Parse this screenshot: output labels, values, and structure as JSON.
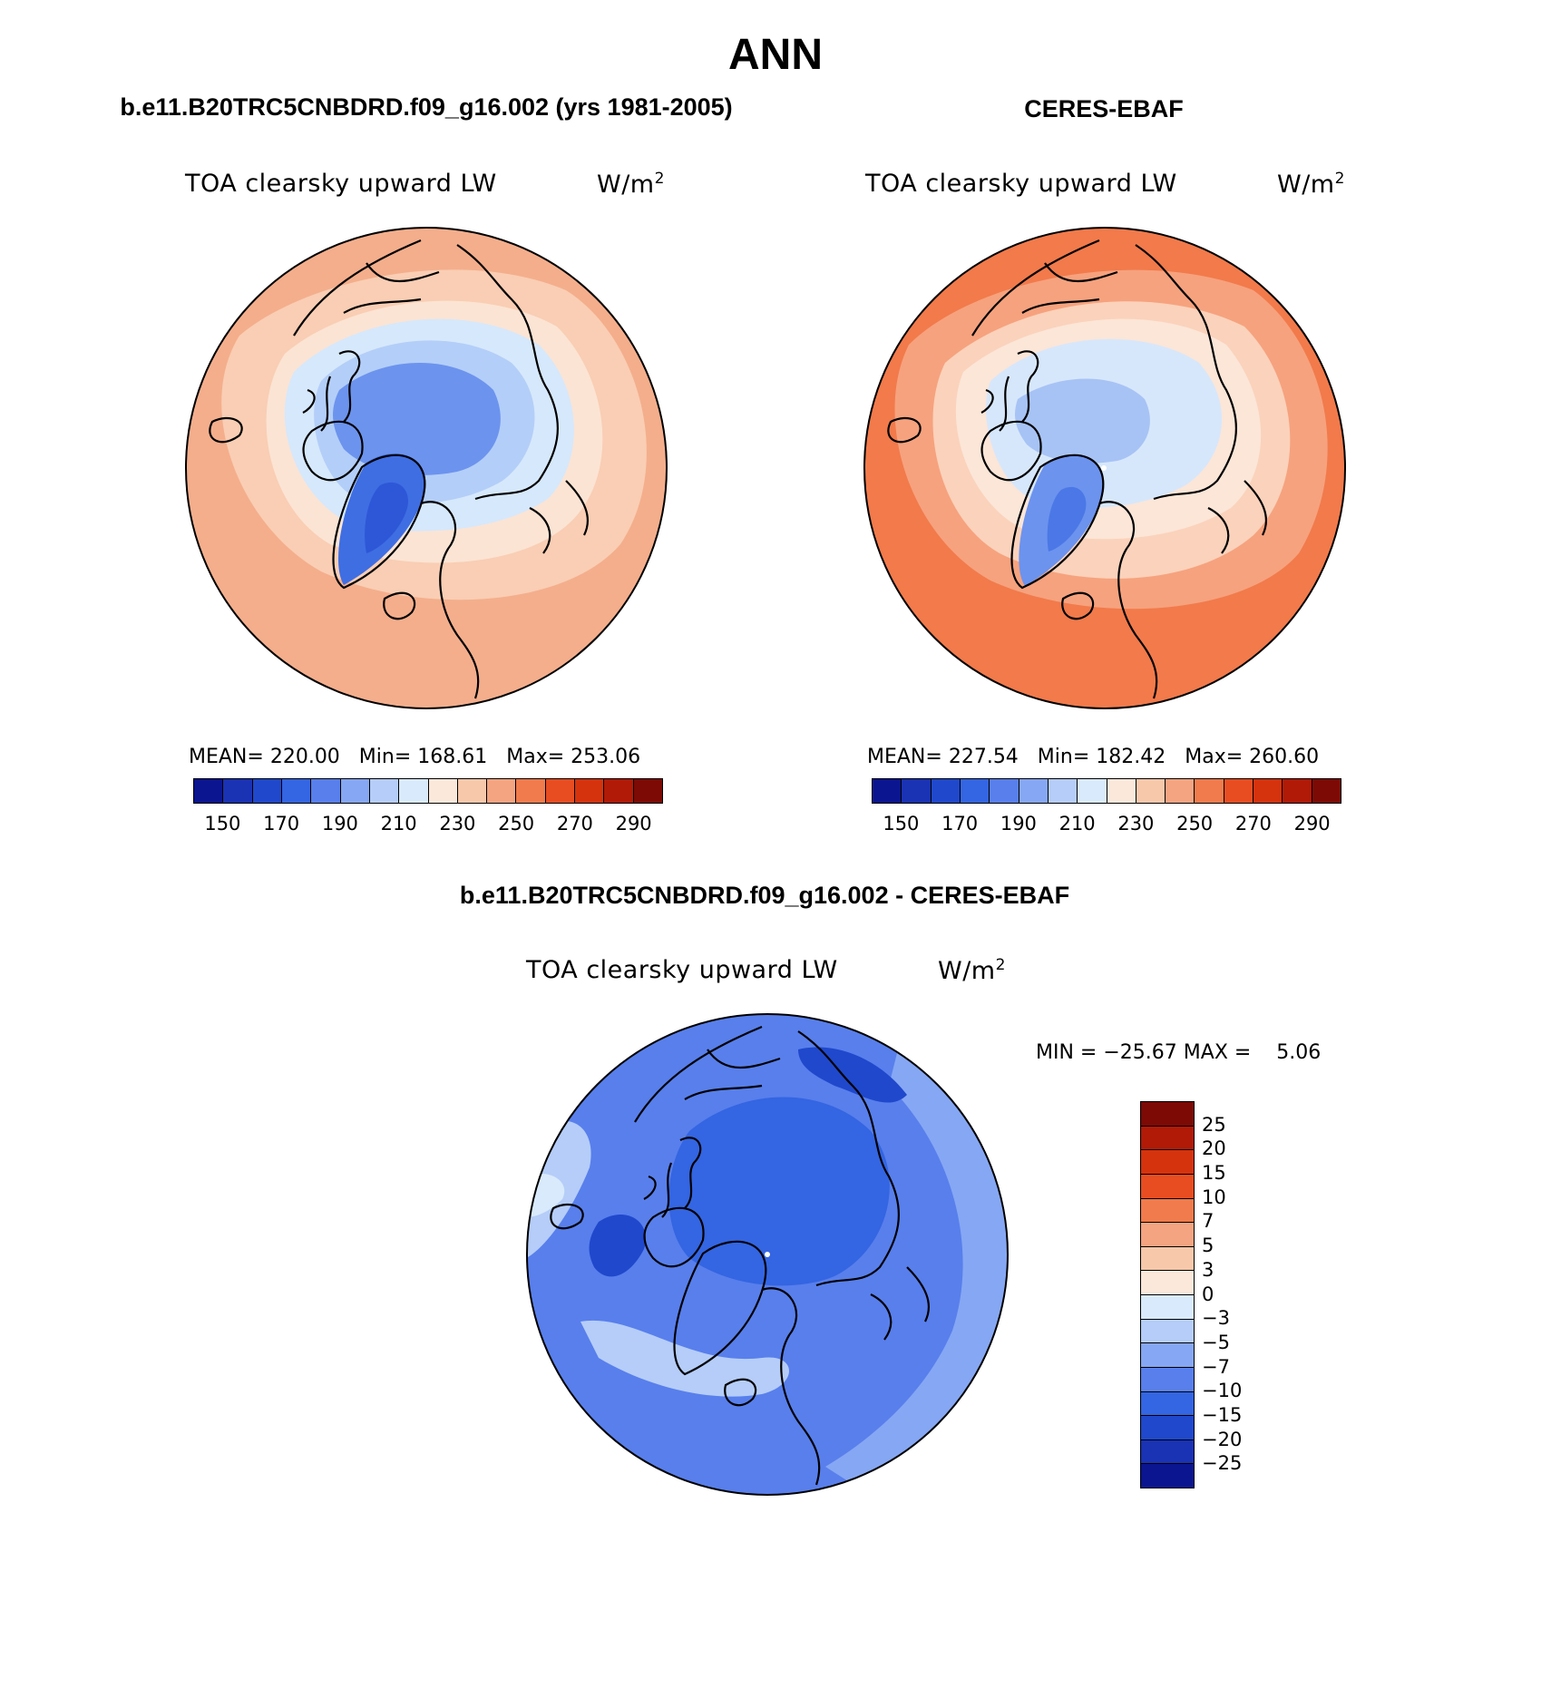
{
  "title": "ANN",
  "panels": [
    {
      "title": "b.e11.B20TRC5CNBDRD.f09_g16.002 (yrs 1981-2005)",
      "variable": "TOA clearsky upward LW",
      "units_base": "W/m",
      "units_exp": "2",
      "mean_label": "MEAN=",
      "mean": "220.00",
      "min_label": "Min=",
      "min": "168.61",
      "max_label": "Max=",
      "max": "253.06",
      "map_colors": {
        "ocean_outer": "#f4ae8c",
        "ring2": "#f9ceb4",
        "ring3": "#fbe4d4",
        "ice1": "#d6e8fb",
        "ice2": "#b3cef8",
        "ice3": "#8fb1f4",
        "core": "#6c93ee",
        "greenland": "#3f6ee3",
        "greenland_core": "#2d57d7"
      }
    },
    {
      "title": "CERES-EBAF",
      "variable": "TOA clearsky upward LW",
      "units_base": "W/m",
      "units_exp": "2",
      "mean_label": "MEAN=",
      "mean": "227.54",
      "min_label": "Min=",
      "min": "182.42",
      "max_label": "Max=",
      "max": "260.60",
      "map_colors": {
        "ocean_outer": "#f27a4b",
        "ring2": "#f6a27e",
        "ring3": "#fbd2bb",
        "ice1": "#fbe6d8",
        "ice2": "#d7e7fb",
        "ice3": "#b8d0f8",
        "core": "#a7c3f5",
        "greenland": "#6c93ee",
        "greenland_core": "#4b78e6"
      }
    }
  ],
  "abs_colorbar": {
    "colors": [
      "#0b1590",
      "#1a32b4",
      "#2048cc",
      "#3465e2",
      "#587fec",
      "#86a7f3",
      "#b5cdf8",
      "#d9eafc",
      "#fbe8da",
      "#f8c8ab",
      "#f5a481",
      "#f17b4c",
      "#e84d21",
      "#d5330d",
      "#b11a07",
      "#7d0a04"
    ],
    "ticks": [
      "150",
      "170",
      "190",
      "210",
      "230",
      "250",
      "270",
      "290"
    ]
  },
  "diff_panel": {
    "title": "b.e11.B20TRC5CNBDRD.f09_g16.002 - CERES-EBAF",
    "variable": "TOA clearsky upward LW",
    "units_base": "W/m",
    "units_exp": "2",
    "min_label": "MIN =",
    "min": "−25.67",
    "max_label": "MAX =",
    "max": "5.06",
    "map_colors": {
      "base": "#587fec",
      "outer": "#86a7f3",
      "light": "#b5cdf8",
      "pale": "#d9eafc",
      "deep": "#3465e2",
      "deeper": "#2048cc"
    }
  },
  "diff_colorbar": {
    "colors": [
      "#7d0a04",
      "#b11a07",
      "#d5330d",
      "#e84d21",
      "#f17b4c",
      "#f5a481",
      "#f8c8ab",
      "#fbe8da",
      "#d9eafc",
      "#b5cdf8",
      "#86a7f3",
      "#587fec",
      "#3465e2",
      "#2048cc",
      "#1a32b4",
      "#0b1590"
    ],
    "ticks": [
      "25",
      "20",
      "15",
      "10",
      "7",
      "5",
      "3",
      "0",
      "−3",
      "−5",
      "−7",
      "−10",
      "−15",
      "−20",
      "−25"
    ]
  }
}
